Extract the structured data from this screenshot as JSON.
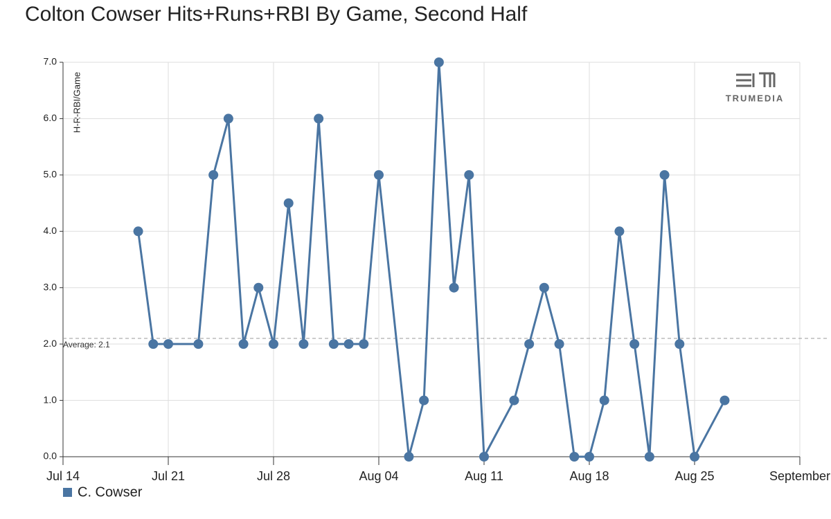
{
  "chart_data": {
    "type": "line",
    "title": "Colton Cowser Hits+Runs+RBI By Game, Second Half",
    "y_label": "H-R-RBI/Game",
    "logo": "TRUMEDIA",
    "x": [
      "Jul 19",
      "Jul 20",
      "Jul 21",
      "Jul 23",
      "Jul 24",
      "Jul 25",
      "Jul 26",
      "Jul 27",
      "Jul 28",
      "Jul 29",
      "Jul 30",
      "Jul 31",
      "Aug 01",
      "Aug 02",
      "Aug 03",
      "Aug 04",
      "Aug 06",
      "Aug 07",
      "Aug 08",
      "Aug 09",
      "Aug 10",
      "Aug 11",
      "Aug 13",
      "Aug 14",
      "Aug 15",
      "Aug 16",
      "Aug 17",
      "Aug 18",
      "Aug 19",
      "Aug 20",
      "Aug 21",
      "Aug 22",
      "Aug 23",
      "Aug 24",
      "Aug 25",
      "Aug 27"
    ],
    "series": [
      {
        "name": "C. Cowser",
        "color": "#4a75a2",
        "values": [
          4,
          2,
          2,
          2,
          5,
          6,
          2,
          3,
          2,
          4.5,
          2,
          6,
          2,
          2,
          2,
          5,
          0,
          1,
          7,
          3,
          5,
          0,
          1,
          2,
          3,
          2,
          0,
          0,
          1,
          4,
          2,
          0,
          5,
          2,
          0,
          1
        ]
      }
    ],
    "average": {
      "value": 2.1,
      "label": "Average: 2.1"
    },
    "xlim": [
      "Jul 14",
      "Sep 01"
    ],
    "xticks": [
      "Jul 14",
      "Jul 21",
      "Jul 28",
      "Aug 04",
      "Aug 11",
      "Aug 18",
      "Aug 25",
      {
        "value": "Sep 01",
        "label": "September"
      }
    ],
    "ylim": [
      0,
      7
    ],
    "yticks": [
      {
        "value": 0,
        "label": "0.0"
      },
      {
        "value": 1,
        "label": "1.0"
      },
      {
        "value": 2,
        "label": "2.0"
      },
      {
        "value": 3,
        "label": "3.0"
      },
      {
        "value": 4,
        "label": "4.0"
      },
      {
        "value": 5,
        "label": "5.0"
      },
      {
        "value": 6,
        "label": "6.0"
      },
      {
        "value": 7,
        "label": "7.0"
      }
    ],
    "grid": true
  }
}
